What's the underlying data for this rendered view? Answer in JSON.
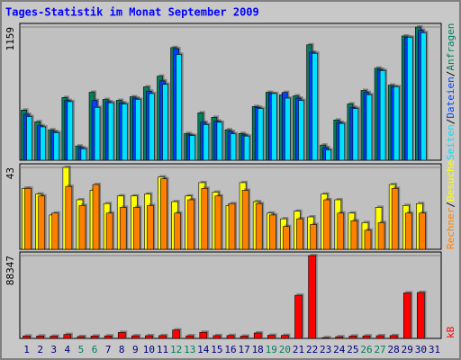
{
  "chart_data": [
    {
      "type": "bar",
      "title": "Tages-Statistik im Monat September 2009",
      "title_color": "#0000ff",
      "ylim": [
        0,
        1159
      ],
      "yticks": [
        1159
      ],
      "legend_separator": "/",
      "series": [
        {
          "name": "Anfragen",
          "color": "#00805c",
          "values": [
            436,
            335,
            265,
            545,
            124,
            591,
            529,
            521,
            552,
            638,
            731,
            980,
            233,
            412,
            373,
            265,
            233,
            467,
            591,
            568,
            560,
            1004,
            132,
            350,
            490,
            607,
            801,
            653,
            1081,
            1159,
            null
          ]
        },
        {
          "name": "Dateien",
          "color": "#0040ff",
          "values": [
            400,
            300,
            250,
            520,
            110,
            520,
            510,
            500,
            540,
            600,
            690,
            970,
            220,
            330,
            340,
            250,
            220,
            460,
            580,
            590,
            540,
            940,
            110,
            330,
            460,
            590,
            790,
            640,
            1070,
            1130,
            null
          ]
        },
        {
          "name": "Seiten",
          "color": "#00e0ff",
          "values": [
            380,
            290,
            240,
            510,
            100,
            460,
            500,
            490,
            530,
            580,
            660,
            920,
            215,
            310,
            330,
            230,
            210,
            450,
            580,
            540,
            520,
            930,
            90,
            320,
            450,
            570,
            780,
            640,
            1070,
            1110,
            null
          ]
        }
      ]
    },
    {
      "type": "bar",
      "ylim": [
        0,
        43
      ],
      "yticks": [
        43
      ],
      "legend_separator": "/",
      "series": [
        {
          "name": "Besuche",
          "color": "#ffff00",
          "values": [
            32,
            29,
            18,
            43,
            26,
            31,
            24,
            28,
            28,
            29,
            38,
            25,
            28,
            35,
            30,
            23,
            35,
            25,
            19,
            16,
            20,
            17,
            29,
            26,
            19,
            14,
            22,
            34,
            23,
            24,
            null
          ]
        },
        {
          "name": "Rechner",
          "color": "#ff8000",
          "values": [
            32,
            28,
            19,
            33,
            23,
            34,
            19,
            22,
            22,
            23,
            37,
            19,
            26,
            32,
            28,
            24,
            31,
            24,
            18,
            12,
            16,
            13,
            26,
            19,
            15,
            10,
            14,
            32,
            19,
            19,
            null
          ]
        }
      ]
    },
    {
      "type": "bar",
      "ylim": [
        0,
        88347
      ],
      "yticks": [
        88347
      ],
      "categories": [
        "1",
        "2",
        "3",
        "4",
        "5",
        "6",
        "7",
        "8",
        "9",
        "10",
        "11",
        "12",
        "13",
        "14",
        "15",
        "16",
        "17",
        "18",
        "19",
        "20",
        "21",
        "22",
        "23",
        "24",
        "25",
        "26",
        "27",
        "28",
        "29",
        "30",
        "31"
      ],
      "label_color": "#000080",
      "highlight_color": "#00805c",
      "highlighted": [
        4,
        5,
        11,
        12,
        18,
        19,
        25,
        26
      ],
      "series": [
        {
          "name": "kB",
          "color": "#ff0000",
          "values": [
            2500,
            2600,
            2400,
            4200,
            2000,
            2500,
            2700,
            6300,
            2800,
            2900,
            3000,
            9000,
            2800,
            6500,
            3000,
            3100,
            2400,
            5800,
            3300,
            3200,
            46000,
            88347,
            800,
            1800,
            2500,
            2700,
            2900,
            3000,
            48500,
            49000,
            null
          ]
        }
      ]
    }
  ]
}
